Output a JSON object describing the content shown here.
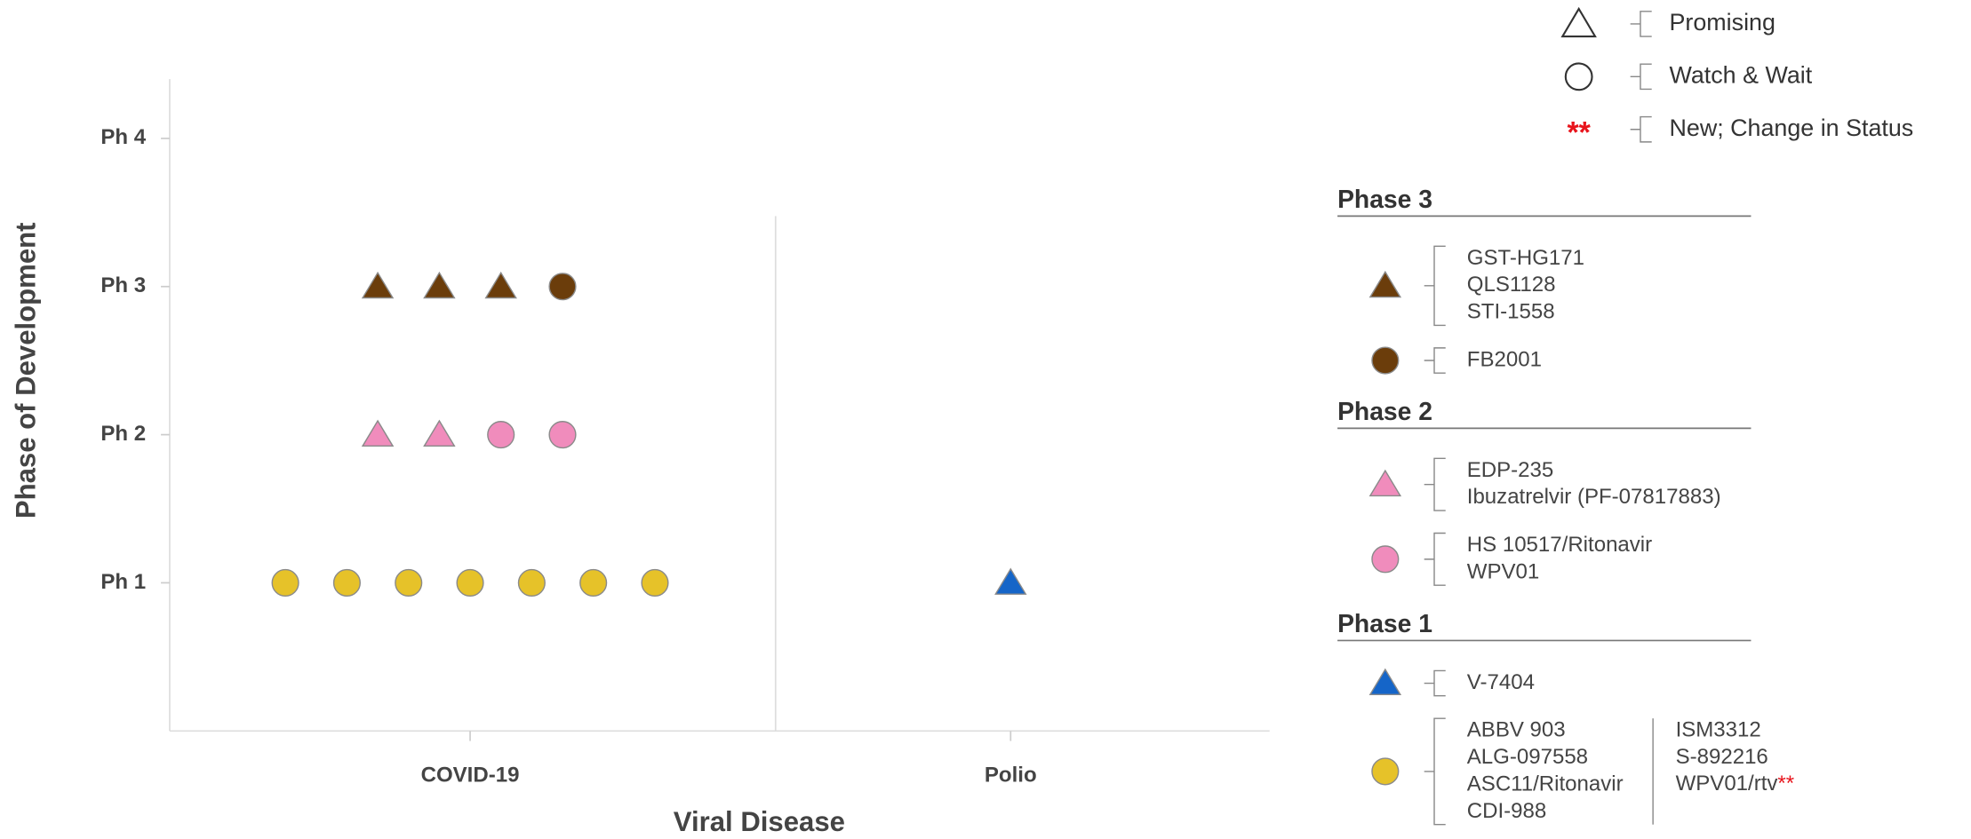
{
  "chart_data": {
    "type": "scatter",
    "xlabel": "Viral Disease",
    "ylabel": "Phase of Development",
    "categories": [
      "COVID-19",
      "Polio"
    ],
    "ylim": [
      0,
      4.4
    ],
    "yticks": [
      {
        "value": 1,
        "label": "Ph 1"
      },
      {
        "value": 2,
        "label": "Ph 2"
      },
      {
        "value": 3,
        "label": "Ph 3"
      },
      {
        "value": 4,
        "label": "Ph 4"
      }
    ],
    "key": [
      {
        "shape": "triangle",
        "label": "Promising"
      },
      {
        "shape": "circle",
        "label": "Watch & Wait"
      },
      {
        "symbol": "**",
        "color": "#e8141c",
        "label": "New; Change in Status"
      }
    ],
    "phases": [
      {
        "title": "Phase 3",
        "series": [
          {
            "x": "COVID-19",
            "shape": "triangle",
            "color": "#6b3d0b",
            "values": [
              3,
              3,
              3
            ],
            "drugs": [
              "GST-HG171",
              "QLS1128",
              "STI-1558"
            ]
          },
          {
            "x": "COVID-19",
            "shape": "circle",
            "color": "#6b3d0b",
            "values": [
              3
            ],
            "drugs": [
              "FB2001"
            ]
          }
        ]
      },
      {
        "title": "Phase 2",
        "series": [
          {
            "x": "COVID-19",
            "shape": "triangle",
            "color": "#f08cbc",
            "values": [
              2,
              2
            ],
            "drugs": [
              "EDP-235",
              "Ibuzatrelvir (PF-07817883)"
            ]
          },
          {
            "x": "COVID-19",
            "shape": "circle",
            "color": "#f08cbc",
            "values": [
              2,
              2
            ],
            "drugs": [
              "HS 10517/Ritonavir",
              "WPV01"
            ]
          }
        ]
      },
      {
        "title": "Phase 1",
        "series": [
          {
            "x": "Polio",
            "shape": "triangle",
            "color": "#1565c8",
            "values": [
              1
            ],
            "drugs": [
              "V-7404"
            ]
          },
          {
            "x": "COVID-19",
            "shape": "circle",
            "color": "#e6c229",
            "values": [
              1,
              1,
              1,
              1,
              1,
              1,
              1
            ],
            "drugs": [
              "ABBV 903",
              "ALG-097558",
              "ASC11/Ritonavir",
              "CDI-988",
              "ISM3312",
              "S-892216",
              {
                "name": "WPV01/rtv",
                "flag": "**"
              }
            ]
          }
        ]
      }
    ]
  }
}
